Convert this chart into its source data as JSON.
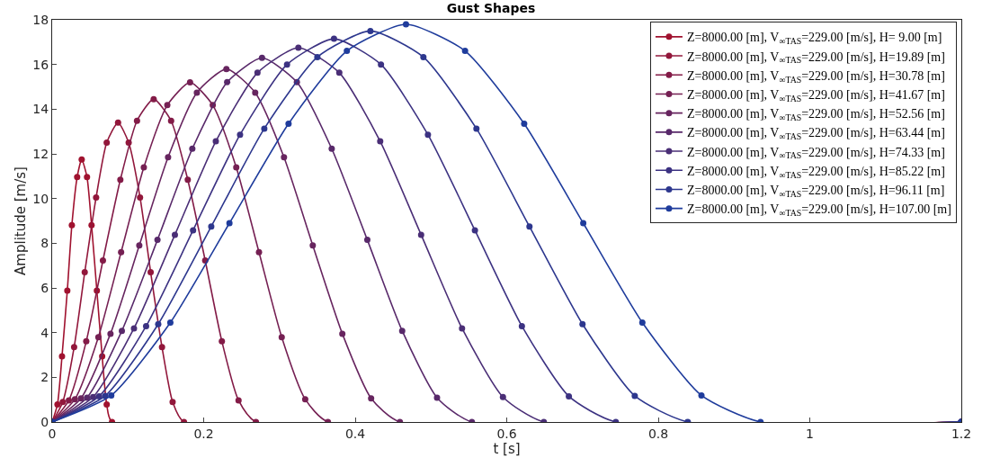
{
  "chart_data": {
    "type": "line",
    "title": "Gust Shapes",
    "xlabel": "t [s]",
    "ylabel": "Amplitude [m/s]",
    "xlim": [
      0,
      1.2
    ],
    "xticks": [
      0,
      0.2,
      0.4,
      0.6,
      0.8,
      1,
      1.2
    ],
    "ylim": [
      0,
      18
    ],
    "yticks": [
      0,
      2,
      4,
      6,
      8,
      10,
      12,
      14,
      16,
      18
    ],
    "legend": "top right",
    "marker": "circle",
    "line_style": "solid",
    "series": [
      {
        "name": "Z=8000.00 [m], V$_{∞TAS}$=229.00 [m/s], H= 9.00 [m]",
        "color": "#a0122f",
        "x": [
          0,
          0.007,
          0.013,
          0.02,
          0.026,
          0.033,
          0.039,
          0.046,
          0.052,
          0.059,
          0.066,
          0.072,
          0.079,
          1.2
        ],
        "values": [
          0,
          0.79,
          2.94,
          5.88,
          8.81,
          10.96,
          11.75,
          10.96,
          8.81,
          5.88,
          2.94,
          0.79,
          0,
          0
        ]
      },
      {
        "name": "Z=8000.00 [m], V$_{∞TAS}$=229.00 [m/s], H=19.89 [m]",
        "color": "#92173b",
        "x": [
          0,
          0.014,
          0.029,
          0.043,
          0.058,
          0.072,
          0.087,
          0.101,
          0.116,
          0.13,
          0.145,
          0.159,
          0.174,
          1.2
        ],
        "values": [
          0,
          0.9,
          3.35,
          6.7,
          10.05,
          12.5,
          13.4,
          12.5,
          10.05,
          6.7,
          3.35,
          0.9,
          0,
          0
        ]
      },
      {
        "name": "Z=8000.00 [m], V$_{∞TAS}$=229.00 [m/s], H=30.78 [m]",
        "color": "#831b47",
        "x": [
          0,
          0.022,
          0.045,
          0.067,
          0.09,
          0.112,
          0.134,
          0.157,
          0.179,
          0.202,
          0.224,
          0.246,
          0.269,
          1.2
        ],
        "values": [
          0,
          0.97,
          3.61,
          7.23,
          10.84,
          13.48,
          14.45,
          13.48,
          10.84,
          7.23,
          3.61,
          0.97,
          0,
          0
        ]
      },
      {
        "name": "Z=8000.00 [m], V$_{∞TAS}$=229.00 [m/s], H=41.67 [m]",
        "color": "#752053",
        "x": [
          0,
          0.03,
          0.061,
          0.091,
          0.121,
          0.152,
          0.182,
          0.212,
          0.243,
          0.273,
          0.303,
          0.334,
          0.364,
          1.2
        ],
        "values": [
          0,
          1.02,
          3.8,
          7.6,
          11.4,
          14.18,
          15.2,
          14.18,
          11.4,
          7.6,
          3.8,
          1.02,
          0,
          0
        ]
      },
      {
        "name": "Z=8000.00 [m], V$_{∞TAS}$=229.00 [m/s], H=52.56 [m]",
        "color": "#67255f",
        "x": [
          0,
          0.038,
          0.077,
          0.115,
          0.153,
          0.191,
          0.23,
          0.268,
          0.306,
          0.344,
          0.383,
          0.421,
          0.459,
          1.2
        ],
        "values": [
          0,
          1.06,
          3.95,
          7.9,
          11.85,
          14.74,
          15.8,
          14.74,
          11.85,
          7.9,
          3.95,
          1.06,
          0,
          0
        ]
      },
      {
        "name": "Z=8000.00 [m], V$_{∞TAS}$=229.00 [m/s], H=63.44 [m]",
        "color": "#58296a",
        "x": [
          0,
          0.046,
          0.092,
          0.139,
          0.185,
          0.231,
          0.277,
          0.323,
          0.369,
          0.416,
          0.462,
          0.508,
          0.554,
          1.2
        ],
        "values": [
          0,
          1.09,
          4.08,
          8.15,
          12.23,
          15.21,
          16.3,
          15.21,
          12.23,
          8.15,
          4.08,
          1.09,
          0,
          0
        ]
      },
      {
        "name": "Z=8000.00 [m], V$_{∞TAS}$=229.00 [m/s], H=74.33 [m]",
        "color": "#4a2e76",
        "x": [
          0,
          0.054,
          0.108,
          0.162,
          0.216,
          0.271,
          0.325,
          0.379,
          0.433,
          0.487,
          0.541,
          0.595,
          0.649,
          1.2
        ],
        "values": [
          0,
          1.12,
          4.19,
          8.38,
          12.56,
          15.63,
          16.75,
          15.63,
          12.56,
          8.38,
          4.19,
          1.12,
          0,
          0
        ]
      },
      {
        "name": "Z=8000.00 [m], V$_{∞TAS}$=229.00 [m/s], H=85.22 [m]",
        "color": "#3c3282",
        "x": [
          0,
          0.062,
          0.124,
          0.186,
          0.248,
          0.31,
          0.372,
          0.434,
          0.496,
          0.558,
          0.62,
          0.682,
          0.744,
          1.2
        ],
        "values": [
          0,
          1.15,
          4.29,
          8.58,
          12.86,
          16.0,
          17.15,
          16.0,
          12.86,
          8.58,
          4.29,
          1.15,
          0,
          0
        ]
      },
      {
        "name": "Z=8000.00 [m], V$_{∞TAS}$=229.00 [m/s], H=96.11 [m]",
        "color": "#2d378e",
        "x": [
          0,
          0.07,
          0.14,
          0.21,
          0.28,
          0.35,
          0.42,
          0.49,
          0.56,
          0.63,
          0.7,
          0.769,
          0.839,
          1.2
        ],
        "values": [
          0,
          1.17,
          4.38,
          8.75,
          13.13,
          16.33,
          17.5,
          16.33,
          13.13,
          8.75,
          4.38,
          1.17,
          0,
          0
        ]
      },
      {
        "name": "Z=8000.00 [m], V$_{∞TAS}$=229.00 [m/s], H=107.00 [m]",
        "color": "#1f3c9c",
        "x": [
          0,
          0.078,
          0.156,
          0.234,
          0.312,
          0.389,
          0.467,
          0.545,
          0.623,
          0.701,
          0.779,
          0.857,
          0.935,
          1.2
        ],
        "values": [
          0,
          1.19,
          4.45,
          8.9,
          13.35,
          16.61,
          17.8,
          16.61,
          13.35,
          8.9,
          4.45,
          1.19,
          0,
          0
        ]
      }
    ]
  }
}
